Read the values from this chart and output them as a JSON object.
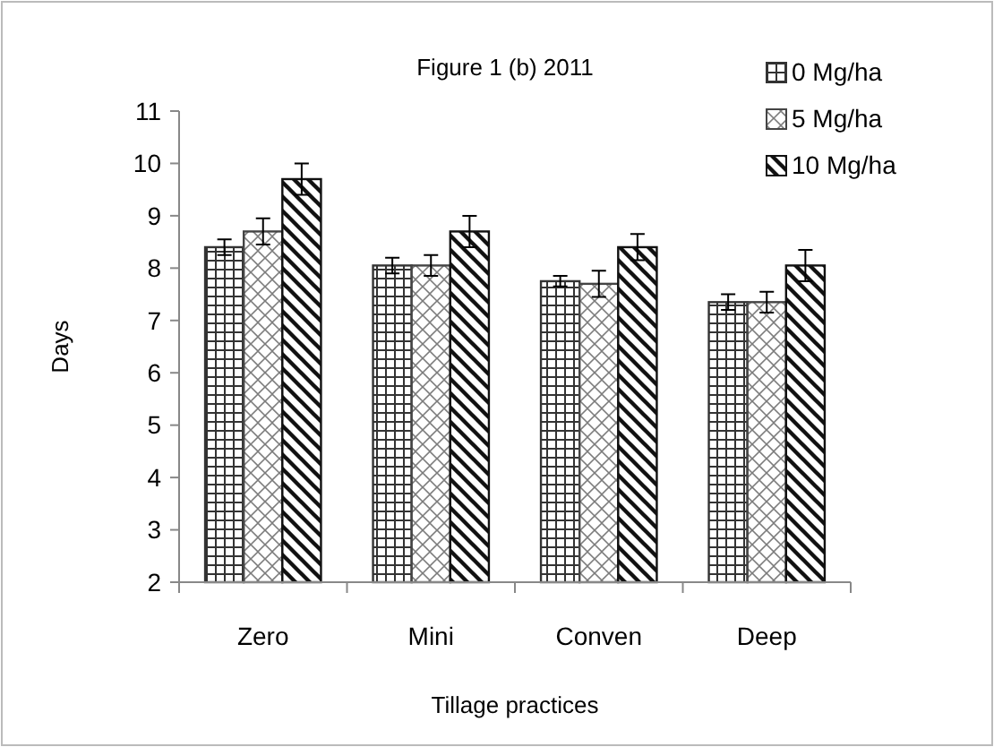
{
  "chart_data": {
    "type": "bar",
    "title": "Figure 1 (b) 2011",
    "xlabel": "Tillage practices",
    "ylabel": "Days",
    "categories": [
      "Zero",
      "Mini",
      "Conven",
      "Deep"
    ],
    "series": [
      {
        "name": "0 Mg/ha",
        "color": "#333333",
        "values": [
          8.4,
          8.05,
          7.75,
          7.35
        ],
        "errors": [
          0.15,
          0.15,
          0.1,
          0.15
        ]
      },
      {
        "name": "5 Mg/ha",
        "color": "#444444",
        "values": [
          8.7,
          8.05,
          7.7,
          7.35
        ],
        "errors": [
          0.25,
          0.2,
          0.25,
          0.2
        ]
      },
      {
        "name": "10 Mg/ha",
        "color": "#111111",
        "values": [
          9.7,
          8.7,
          8.4,
          8.05
        ],
        "errors": [
          0.3,
          0.3,
          0.25,
          0.3
        ]
      }
    ],
    "ylim": [
      2,
      11
    ],
    "yticks": [
      2,
      3,
      4,
      5,
      6,
      7,
      8,
      9,
      10,
      11
    ],
    "grid": false,
    "legend": "top right"
  }
}
